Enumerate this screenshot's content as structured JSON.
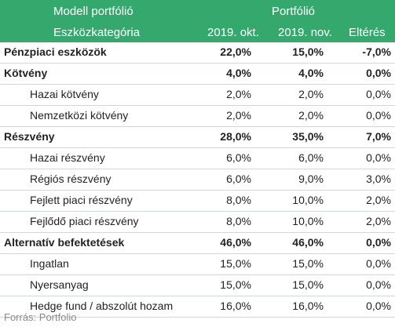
{
  "header": {
    "top_left": "Modell portfólió",
    "top_right": "Portfólió",
    "col_category": "Eszközkategória",
    "col_oct": "2019. okt.",
    "col_nov": "2019. nov.",
    "col_diff": "Eltérés"
  },
  "rows": [
    {
      "label": "Pénzpiaci eszközök",
      "oct": "22,0%",
      "nov": "15,0%",
      "diff": "-7,0%"
    },
    {
      "label": "Kötvény",
      "oct": "4,0%",
      "nov": "4,0%",
      "diff": "0,0%"
    },
    {
      "label": "Hazai kötvény",
      "oct": "2,0%",
      "nov": "2,0%",
      "diff": "0,0%"
    },
    {
      "label": "Nemzetközi kötvény",
      "oct": "2,0%",
      "nov": "2,0%",
      "diff": "0,0%"
    },
    {
      "label": "Részvény",
      "oct": "28,0%",
      "nov": "35,0%",
      "diff": "7,0%"
    },
    {
      "label": "Hazai részvény",
      "oct": "6,0%",
      "nov": "6,0%",
      "diff": "0,0%"
    },
    {
      "label": "Régiós részvény",
      "oct": "6,0%",
      "nov": "9,0%",
      "diff": "3,0%"
    },
    {
      "label": "Fejlett piaci részvény",
      "oct": "8,0%",
      "nov": "10,0%",
      "diff": "2,0%"
    },
    {
      "label": "Fejlődő piaci részvény",
      "oct": "8,0%",
      "nov": "10,0%",
      "diff": "2,0%"
    },
    {
      "label": "Alternatív befektetések",
      "oct": "46,0%",
      "nov": "46,0%",
      "diff": "0,0%"
    },
    {
      "label": "Ingatlan",
      "oct": "15,0%",
      "nov": "15,0%",
      "diff": "0,0%"
    },
    {
      "label": "Nyersanyag",
      "oct": "15,0%",
      "nov": "15,0%",
      "diff": "0,0%"
    },
    {
      "label": "Hedge fund / abszolút hozam",
      "oct": "16,0%",
      "nov": "16,0%",
      "diff": "0,0%"
    }
  ],
  "source": "Forrás: Portfolio",
  "colors": {
    "header_bg": "#35a86e",
    "header_text": "#ffffff",
    "source_text": "#8a8a8a"
  }
}
